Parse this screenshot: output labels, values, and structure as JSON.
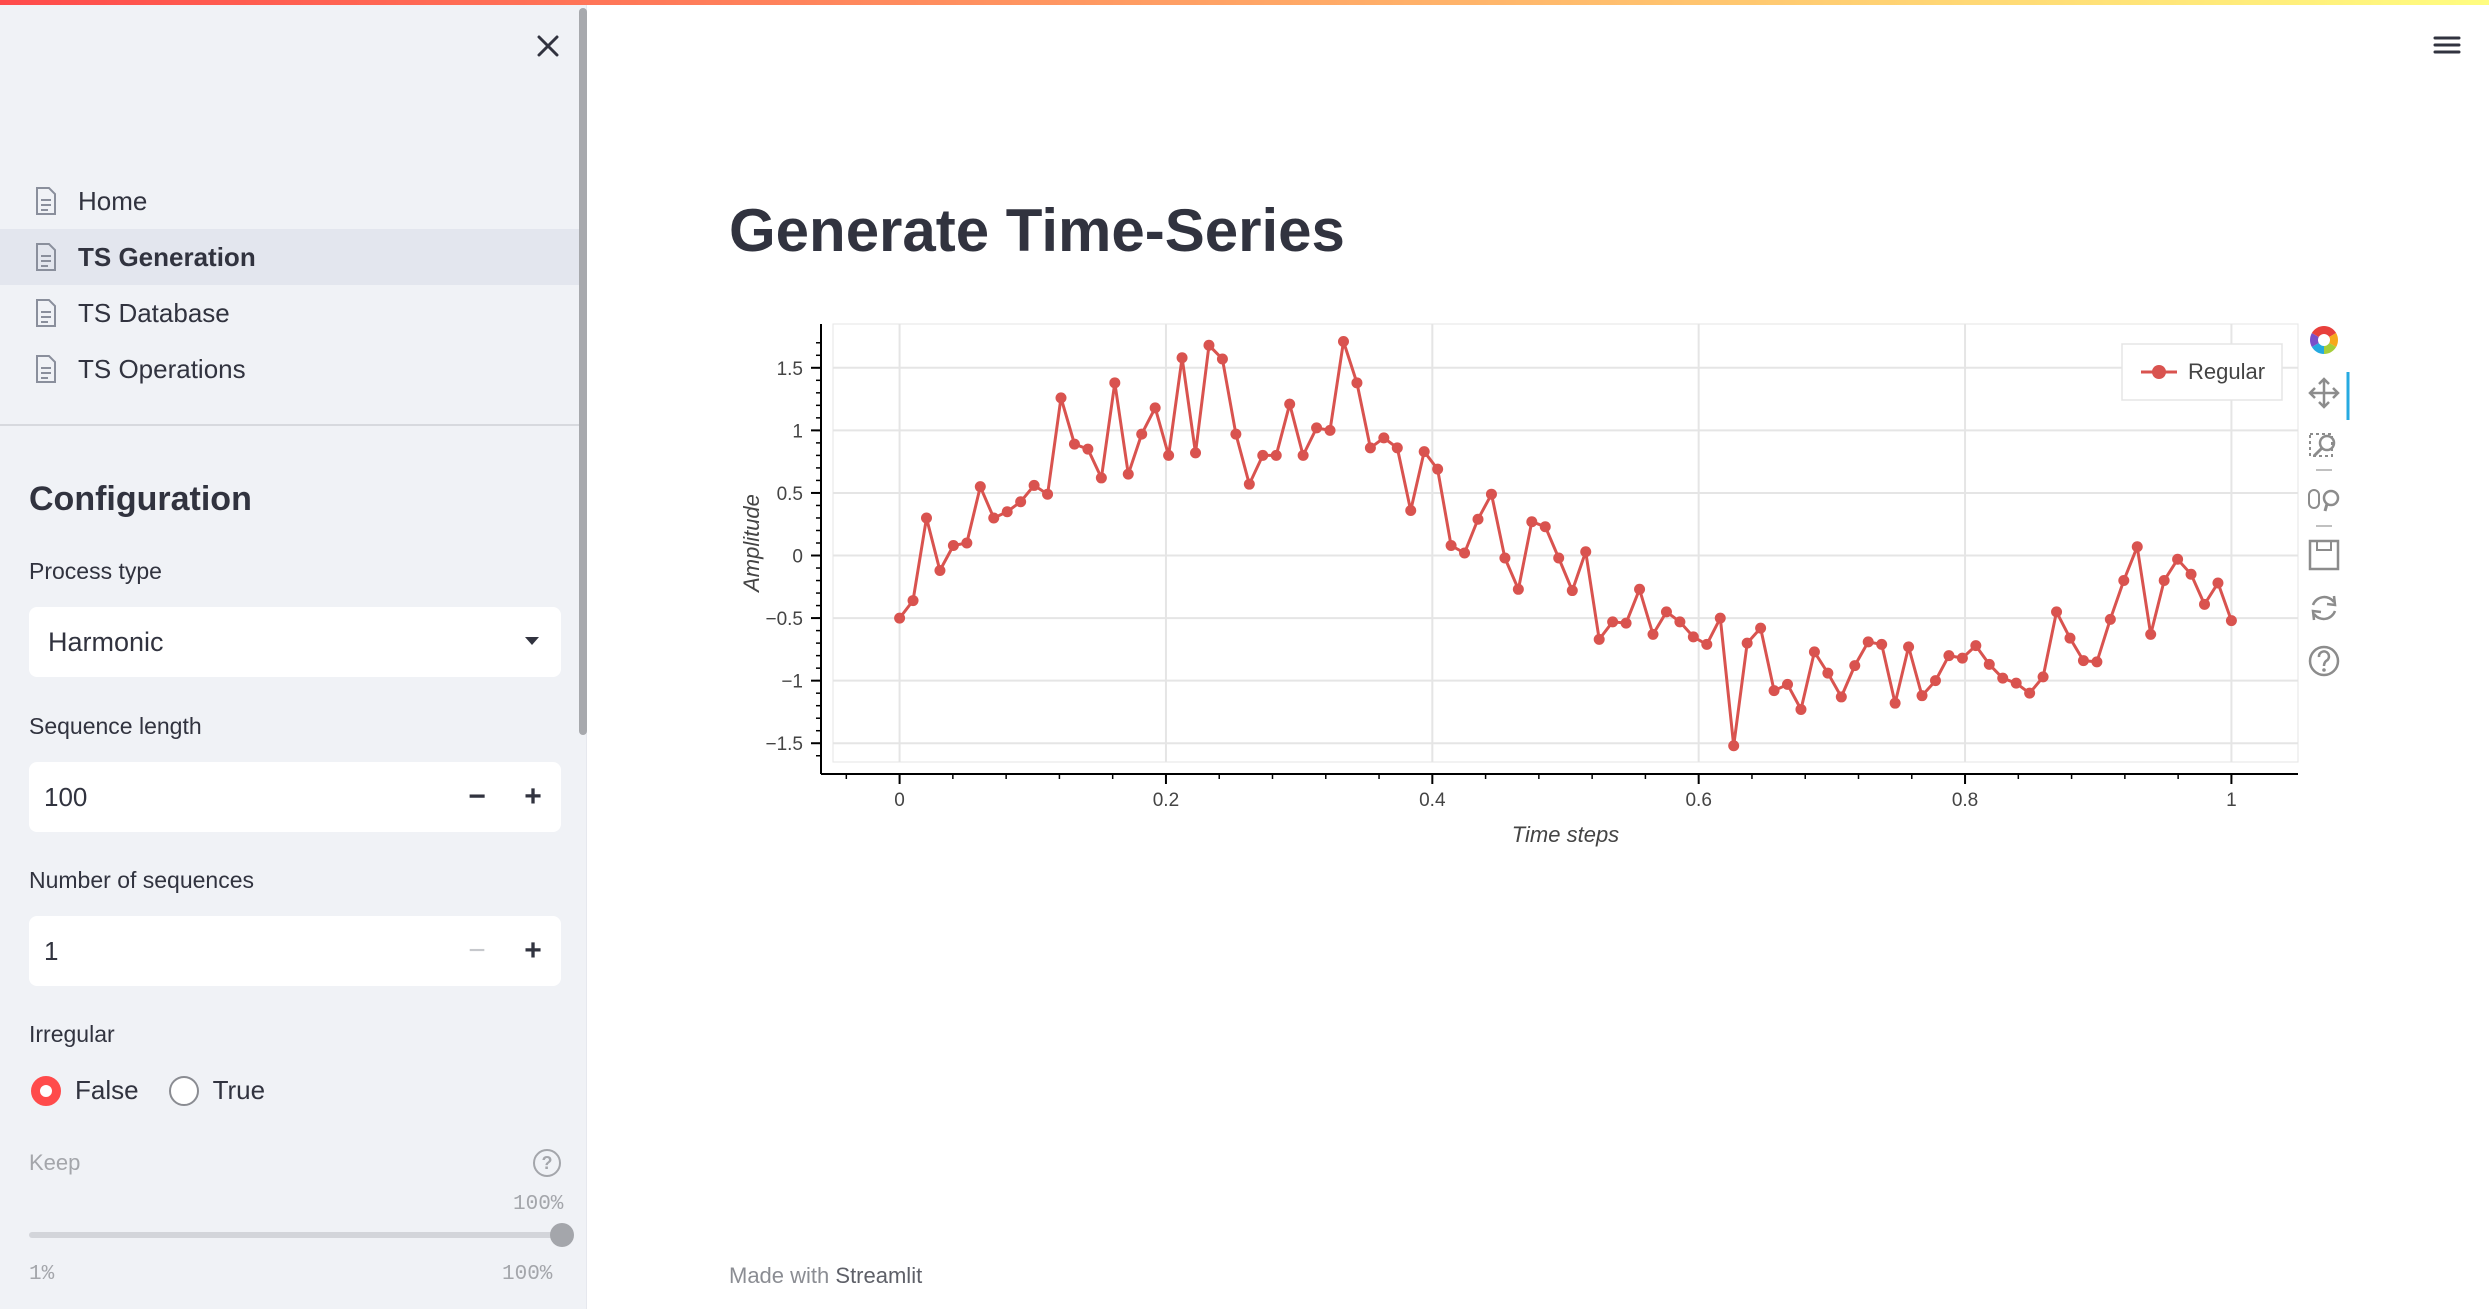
{
  "sidebar": {
    "nav": [
      {
        "label": "Home",
        "active": false
      },
      {
        "label": "TS Generation",
        "active": true
      },
      {
        "label": "TS Database",
        "active": false
      },
      {
        "label": "TS Operations",
        "active": false
      }
    ],
    "config_title": "Configuration",
    "process_type": {
      "label": "Process type",
      "value": "Harmonic"
    },
    "sequence_length": {
      "label": "Sequence length",
      "value": "100"
    },
    "num_sequences": {
      "label": "Number of sequences",
      "value": "1"
    },
    "irregular": {
      "label": "Irregular",
      "options": [
        "False",
        "True"
      ],
      "selected": "False"
    },
    "keep": {
      "label": "Keep",
      "value": "100%",
      "min": "1%",
      "max": "100%",
      "fraction": 1.0
    }
  },
  "main": {
    "title": "Generate Time-Series",
    "footer_prefix": "Made with ",
    "footer_brand": "Streamlit"
  },
  "colors": {
    "accent": "#ff4b4b",
    "series": "#d9534f",
    "sidebar_bg": "#f0f2f6"
  },
  "icons": [
    "close-icon",
    "hamburger-menu-icon",
    "document-icon",
    "caret-down-icon",
    "help-icon",
    "bokeh-logo-icon",
    "pan-icon",
    "box-zoom-icon",
    "wheel-zoom-icon",
    "save-icon",
    "reset-icon",
    "chart-help-icon"
  ],
  "chart_data": {
    "type": "line",
    "xlabel": "Time steps",
    "ylabel": "Amplitude",
    "xlim": [
      -0.05,
      1.05
    ],
    "ylim": [
      -1.65,
      1.85
    ],
    "xticks": [
      "0",
      "0.2",
      "0.4",
      "0.6",
      "0.8",
      "1"
    ],
    "yticks": [
      "1.5",
      "1",
      "0.5",
      "0",
      "−0.5",
      "−1",
      "−1.5"
    ],
    "legend_position": "top-right",
    "grid": true,
    "series": [
      {
        "name": "Regular",
        "x": [
          0,
          0.0101,
          0.0202,
          0.0303,
          0.0404,
          0.0505,
          0.0606,
          0.0707,
          0.0808,
          0.0909,
          0.101,
          0.1111,
          0.1212,
          0.1313,
          0.1414,
          0.1515,
          0.1616,
          0.1717,
          0.1818,
          0.1919,
          0.202,
          0.2121,
          0.2222,
          0.2323,
          0.2424,
          0.2525,
          0.2626,
          0.2727,
          0.2828,
          0.2929,
          0.303,
          0.3131,
          0.3232,
          0.3333,
          0.3434,
          0.3535,
          0.3636,
          0.3737,
          0.3838,
          0.3939,
          0.404,
          0.4141,
          0.4242,
          0.4343,
          0.4444,
          0.4545,
          0.4646,
          0.4747,
          0.4848,
          0.4949,
          0.5051,
          0.5152,
          0.5253,
          0.5354,
          0.5455,
          0.5556,
          0.5657,
          0.5758,
          0.5859,
          0.596,
          0.6061,
          0.6162,
          0.6263,
          0.6364,
          0.6465,
          0.6566,
          0.6667,
          0.6768,
          0.6869,
          0.697,
          0.7071,
          0.7172,
          0.7273,
          0.7374,
          0.7475,
          0.7576,
          0.7677,
          0.7778,
          0.7879,
          0.798,
          0.8081,
          0.8182,
          0.8283,
          0.8384,
          0.8485,
          0.8586,
          0.8687,
          0.8788,
          0.8889,
          0.899,
          0.9091,
          0.9192,
          0.9293,
          0.9394,
          0.9495,
          0.9596,
          0.9697,
          0.9798,
          0.9899,
          1.0
        ],
        "y": [
          -0.5,
          -0.36,
          0.3,
          -0.12,
          0.08,
          0.1,
          0.55,
          0.3,
          0.35,
          0.43,
          0.56,
          0.49,
          1.26,
          0.89,
          0.85,
          0.62,
          1.38,
          0.65,
          0.97,
          1.18,
          0.8,
          1.58,
          0.82,
          1.68,
          1.57,
          0.97,
          0.57,
          0.8,
          0.8,
          1.21,
          0.8,
          1.02,
          1.0,
          1.71,
          1.38,
          0.86,
          0.94,
          0.86,
          0.36,
          0.83,
          0.69,
          0.08,
          0.02,
          0.29,
          0.49,
          -0.02,
          -0.27,
          0.27,
          0.23,
          -0.02,
          -0.28,
          0.03,
          -0.67,
          -0.53,
          -0.54,
          -0.27,
          -0.63,
          -0.45,
          -0.53,
          -0.65,
          -0.71,
          -0.5,
          -1.52,
          -0.7,
          -0.58,
          -1.08,
          -1.03,
          -1.23,
          -0.77,
          -0.94,
          -1.13,
          -0.88,
          -0.69,
          -0.71,
          -1.18,
          -0.73,
          -1.12,
          -1.0,
          -0.8,
          -0.82,
          -0.72,
          -0.87,
          -0.98,
          -1.02,
          -1.1,
          -0.97,
          -0.45,
          -0.66,
          -0.84,
          -0.85,
          -0.51,
          -0.2,
          0.07,
          -0.63,
          -0.2,
          -0.03,
          -0.15,
          -0.39,
          -0.22,
          -0.52
        ]
      }
    ]
  }
}
